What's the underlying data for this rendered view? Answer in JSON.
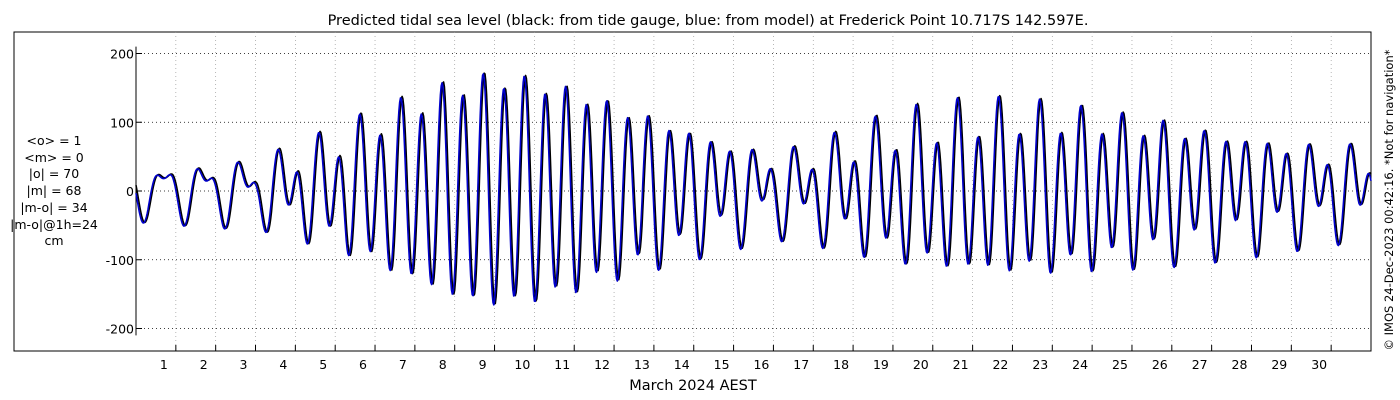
{
  "chart_data": {
    "type": "line",
    "title": "Predicted tidal sea level (black: from tide gauge, blue: from model) at Frederick Point 10.717S 142.597E.",
    "xlabel": "March 2024 AEST",
    "ylabel": "",
    "unit": "cm",
    "xlim": [
      0,
      31
    ],
    "ylim": [
      -220,
      220
    ],
    "yticks": [
      -200,
      -100,
      0,
      100,
      200
    ],
    "xticks": [
      "1",
      "2",
      "3",
      "4",
      "5",
      "6",
      "7",
      "8",
      "9",
      "10",
      "11",
      "12",
      "13",
      "14",
      "15",
      "16",
      "17",
      "18",
      "19",
      "20",
      "21",
      "22",
      "23",
      "24",
      "25",
      "26",
      "27",
      "28",
      "29",
      "30"
    ],
    "grid": true,
    "stats": [
      "<o> = 1",
      "<m> = 0",
      "|o| = 70",
      "|m| = 68",
      "|m-o| = 34",
      "|m-o|@1h=24",
      "cm"
    ],
    "side_note": "© IMOS 24-Dec-2023 00:42:16. *Not for navigation*",
    "colors": {
      "gauge": "#000000",
      "model": "#0000cc"
    },
    "series": [
      {
        "name": "from tide gauge",
        "color": "#000000",
        "daily_semidiurnal_amplitude": [
          [
            0,
            14
          ],
          [
            1,
            16
          ],
          [
            2,
            20
          ],
          [
            3,
            24
          ],
          [
            4,
            48
          ],
          [
            5,
            70
          ],
          [
            6,
            100
          ],
          [
            7,
            125
          ],
          [
            8,
            150
          ],
          [
            9,
            162
          ],
          [
            10,
            155
          ],
          [
            11,
            140
          ],
          [
            12,
            120
          ],
          [
            13,
            100
          ],
          [
            14,
            78
          ],
          [
            15,
            58
          ],
          [
            16,
            40
          ],
          [
            17,
            50
          ],
          [
            18,
            68
          ],
          [
            19,
            88
          ],
          [
            20,
            100
          ],
          [
            21,
            108
          ],
          [
            22,
            110
          ],
          [
            23,
            108
          ],
          [
            24,
            102
          ],
          [
            25,
            96
          ],
          [
            26,
            88
          ],
          [
            27,
            78
          ],
          [
            28,
            68
          ],
          [
            29,
            58
          ],
          [
            30,
            50
          ],
          [
            31,
            45
          ]
        ],
        "daily_diurnal_amplitude": [
          [
            0,
            32
          ],
          [
            1,
            34
          ],
          [
            2,
            36
          ],
          [
            3,
            35
          ],
          [
            4,
            33
          ],
          [
            5,
            28
          ],
          [
            6,
            24
          ],
          [
            7,
            18
          ],
          [
            8,
            14
          ],
          [
            9,
            12
          ],
          [
            10,
            12
          ],
          [
            11,
            12
          ],
          [
            12,
            14
          ],
          [
            13,
            18
          ],
          [
            14,
            24
          ],
          [
            15,
            30
          ],
          [
            16,
            34
          ],
          [
            17,
            36
          ],
          [
            18,
            36
          ],
          [
            19,
            34
          ],
          [
            20,
            32
          ],
          [
            21,
            30
          ],
          [
            22,
            28
          ],
          [
            23,
            26
          ],
          [
            24,
            24
          ],
          [
            25,
            24
          ],
          [
            26,
            26
          ],
          [
            27,
            28
          ],
          [
            28,
            30
          ],
          [
            29,
            32
          ],
          [
            30,
            34
          ],
          [
            31,
            34
          ]
        ],
        "mean": 1,
        "phase_offset_hours": 0
      },
      {
        "name": "from model",
        "color": "#0000cc",
        "daily_semidiurnal_amplitude": [
          [
            0,
            14
          ],
          [
            1,
            16
          ],
          [
            2,
            20
          ],
          [
            3,
            24
          ],
          [
            4,
            48
          ],
          [
            5,
            70
          ],
          [
            6,
            100
          ],
          [
            7,
            125
          ],
          [
            8,
            150
          ],
          [
            9,
            162
          ],
          [
            10,
            155
          ],
          [
            11,
            140
          ],
          [
            12,
            120
          ],
          [
            13,
            100
          ],
          [
            14,
            78
          ],
          [
            15,
            58
          ],
          [
            16,
            40
          ],
          [
            17,
            50
          ],
          [
            18,
            68
          ],
          [
            19,
            88
          ],
          [
            20,
            100
          ],
          [
            21,
            108
          ],
          [
            22,
            110
          ],
          [
            23,
            108
          ],
          [
            24,
            102
          ],
          [
            25,
            96
          ],
          [
            26,
            88
          ],
          [
            27,
            78
          ],
          [
            28,
            68
          ],
          [
            29,
            58
          ],
          [
            30,
            50
          ],
          [
            31,
            45
          ]
        ],
        "daily_diurnal_amplitude": [
          [
            0,
            32
          ],
          [
            1,
            34
          ],
          [
            2,
            36
          ],
          [
            3,
            35
          ],
          [
            4,
            33
          ],
          [
            5,
            28
          ],
          [
            6,
            24
          ],
          [
            7,
            18
          ],
          [
            8,
            14
          ],
          [
            9,
            12
          ],
          [
            10,
            12
          ],
          [
            11,
            12
          ],
          [
            12,
            14
          ],
          [
            13,
            18
          ],
          [
            14,
            24
          ],
          [
            15,
            30
          ],
          [
            16,
            34
          ],
          [
            17,
            36
          ],
          [
            18,
            36
          ],
          [
            19,
            34
          ],
          [
            20,
            32
          ],
          [
            21,
            30
          ],
          [
            22,
            28
          ],
          [
            23,
            26
          ],
          [
            24,
            24
          ],
          [
            25,
            24
          ],
          [
            26,
            26
          ],
          [
            27,
            28
          ],
          [
            28,
            30
          ],
          [
            29,
            32
          ],
          [
            30,
            34
          ],
          [
            31,
            34
          ]
        ],
        "mean": 0,
        "phase_offset_hours": 0.8
      }
    ]
  }
}
